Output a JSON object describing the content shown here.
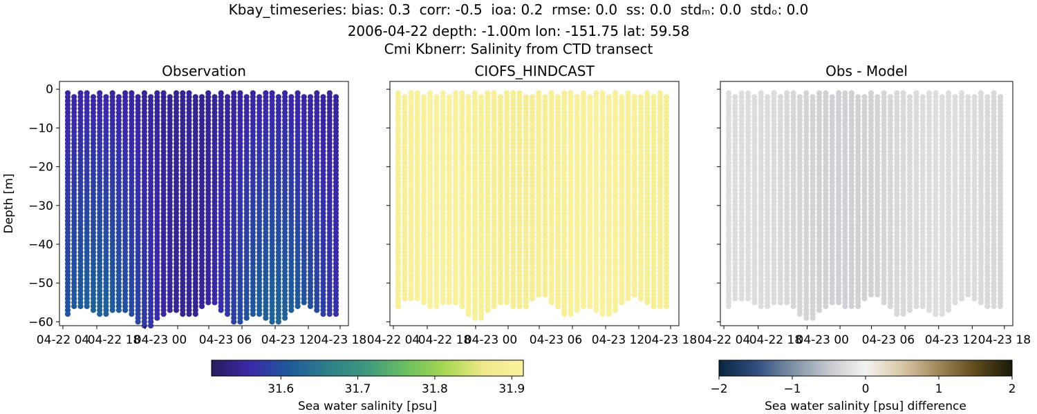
{
  "figure": {
    "title_lines": [
      "Kbay_timeseries: bias: 0.3  corr: -0.5  ioa: 0.2  rmse: 0.0  ss: 0.0  stdₘ: 0.0  stdₒ: 0.0",
      "2006-04-22 depth: -1.00m lon: -151.75 lat: 59.58",
      "Cmi Kbnerr: Salinity from CTD transect"
    ]
  },
  "chart_data": [
    {
      "type": "scatter",
      "title": "Observation",
      "xlabel": "",
      "ylabel": "Depth [m]",
      "ylim": [
        -61,
        2
      ],
      "yticks": [
        0,
        -10,
        -20,
        -30,
        -40,
        -50,
        -60
      ],
      "ytick_labels": [
        "0",
        "−10",
        "−20",
        "−30",
        "−40",
        "−50",
        "−60"
      ],
      "xtick_labels": [
        "04-22 04",
        "04-22 18",
        "04-23 00",
        "04-23 06",
        "04-23 12",
        "04-23 18"
      ],
      "grid": false,
      "casts": 43,
      "depth_range": [
        -1,
        -58
      ],
      "color_range_psu": [
        31.52,
        31.64
      ],
      "colormap": "haline"
    },
    {
      "type": "scatter",
      "title": "CIOFS_HINDCAST",
      "xlabel": "",
      "ylabel": "",
      "ylim": [
        -61,
        2
      ],
      "xtick_labels": [
        "04-22 04",
        "04-22 18",
        "04-23 00",
        "04-23 06",
        "04-23 12",
        "04-23 18"
      ],
      "grid": false,
      "casts": 43,
      "depth_range": [
        -1,
        -56
      ],
      "color_range_psu": [
        31.88,
        31.92
      ],
      "colormap": "haline"
    },
    {
      "type": "scatter",
      "title": "Obs - Model",
      "xlabel": "",
      "ylabel": "",
      "ylim": [
        -61,
        2
      ],
      "xtick_labels": [
        "04-22 04",
        "04-22 18",
        "04-23 00",
        "04-23 06",
        "04-23 12",
        "04-23 18"
      ],
      "grid": false,
      "casts": 43,
      "depth_range": [
        -1,
        -56
      ],
      "color_range_diff": [
        -0.4,
        -0.25
      ],
      "colormap": "diff"
    }
  ],
  "colorbars": [
    {
      "label": "Sea water salinity [psu]",
      "range": [
        31.51,
        31.915
      ],
      "ticks": [
        31.6,
        31.7,
        31.8,
        31.9
      ],
      "tick_labels": [
        "31.6",
        "31.7",
        "31.8",
        "31.9"
      ],
      "colors": [
        "#2a1a5e",
        "#3a2aa8",
        "#1f5a9a",
        "#2e7f8a",
        "#3f9a7e",
        "#6cbf5f",
        "#a8d852",
        "#f0e88a",
        "#fbf2a0"
      ]
    },
    {
      "label": "Sea water salinity [psu] difference",
      "range": [
        -2,
        2
      ],
      "ticks": [
        -2,
        -1,
        0,
        1,
        2
      ],
      "tick_labels": [
        "−2",
        "−1",
        "0",
        "1",
        "2"
      ],
      "colors": [
        "#0b2540",
        "#2e4d7e",
        "#7d8fa6",
        "#c5c9ce",
        "#f4f2ef",
        "#d7c7a6",
        "#a0875a",
        "#5f4a1c",
        "#1a1a0a"
      ]
    }
  ]
}
